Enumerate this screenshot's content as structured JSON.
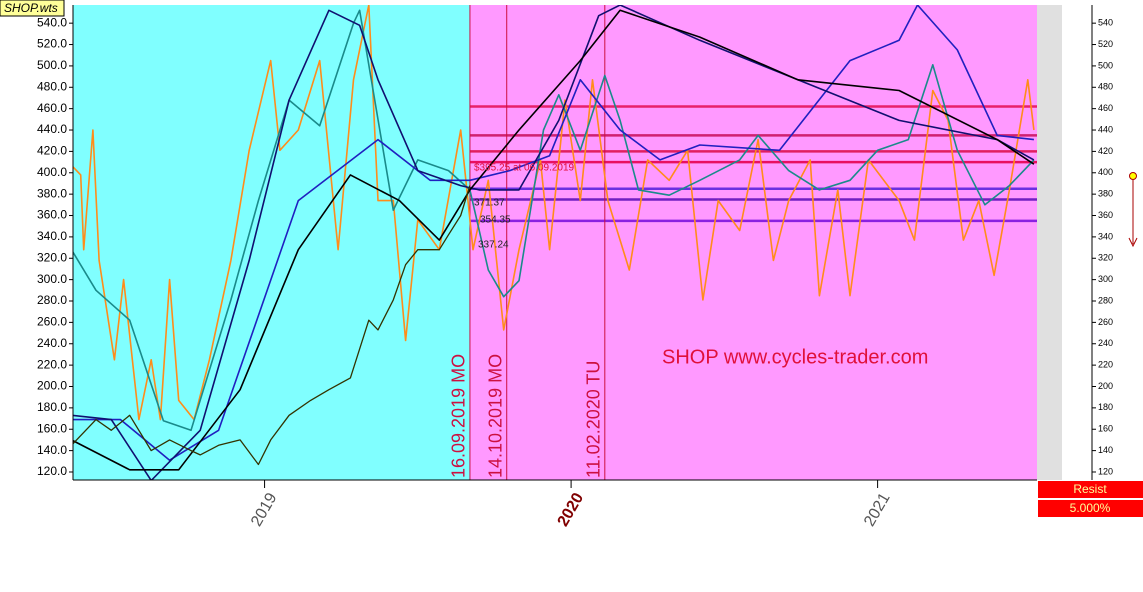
{
  "chart_data": {
    "type": "line",
    "header": "SHOP.wts",
    "watermark": "SHOP www.cycles-trader.com",
    "panel_title": "Resist",
    "panel_value": "5.000%",
    "xlim": [
      2018.375,
      2021.52
    ],
    "ylim": [
      112.5,
      557
    ],
    "xticks": [
      2019,
      2020,
      2021
    ],
    "yticks": [
      {
        "value": 120,
        "label": "120.0"
      },
      {
        "value": 140,
        "label": "140.0"
      },
      {
        "value": 160,
        "label": "160.0"
      },
      {
        "value": 180,
        "label": "180.0"
      },
      {
        "value": 200,
        "label": "200.0"
      },
      {
        "value": 220,
        "label": "220.0"
      },
      {
        "value": 240,
        "label": "240.0"
      },
      {
        "value": 260,
        "label": "260.0"
      },
      {
        "value": 280,
        "label": "280.0"
      },
      {
        "value": 300,
        "label": "300.0"
      },
      {
        "value": 320,
        "label": "320.0"
      },
      {
        "value": 340,
        "label": "340.0"
      },
      {
        "value": 360,
        "label": "360.0"
      },
      {
        "value": 380,
        "label": "380.0"
      },
      {
        "value": 400,
        "label": "400.0"
      },
      {
        "value": 420,
        "label": "420.0"
      },
      {
        "value": 440,
        "label": "440.0"
      },
      {
        "value": 460,
        "label": "460.0"
      },
      {
        "value": 480,
        "label": "480.0"
      },
      {
        "value": 500,
        "label": "500.0"
      },
      {
        "value": 520,
        "label": "520.0"
      },
      {
        "value": 540,
        "label": "540.0"
      }
    ],
    "y2lim": [
      112.5,
      557
    ],
    "y2ticks": [
      120,
      140,
      160,
      180,
      200,
      220,
      240,
      260,
      280,
      300,
      320,
      340,
      360,
      380,
      400,
      420,
      440,
      460,
      480,
      500,
      520,
      540
    ],
    "background_colors": [
      "#80ffff",
      "#ff99ff"
    ],
    "events": [
      {
        "x": 2019.67,
        "label": "16.09.2019 MO"
      },
      {
        "x": 2019.79,
        "label": "14.10.2019 MO"
      },
      {
        "x": 2020.11,
        "label": "11.02.2020 TU"
      }
    ],
    "event_color": "#cc1040",
    "levels": [
      {
        "value": 462,
        "color": "#e8206a"
      },
      {
        "value": 435,
        "color": "#d02070"
      },
      {
        "value": 420,
        "color": "#e02060"
      },
      {
        "value": 410,
        "color": "#e81060"
      },
      {
        "value": 385,
        "color": "#6a30e0"
      },
      {
        "value": 375,
        "color": "#7020c0"
      },
      {
        "value": 355,
        "color": "#8a20e0"
      }
    ],
    "annotations": [
      "$395.25 at 06.09.2019",
      "371.37",
      "354.35",
      "337.24"
    ],
    "series": [
      {
        "color": "#ff8c1a",
        "width": 1.6,
        "x": [
          2018.37,
          2018.4,
          2018.41,
          2018.44,
          2018.46,
          2018.51,
          2018.54,
          2018.59,
          2018.63,
          2018.66,
          2018.69,
          2018.72,
          2018.77,
          2018.82,
          2018.89,
          2018.95,
          2019.02,
          2019.05,
          2019.11,
          2019.18,
          2019.24,
          2019.29,
          2019.34,
          2019.37,
          2019.42,
          2019.46,
          2019.5,
          2019.57,
          2019.64,
          2019.68,
          2019.73,
          2019.78,
          2019.83,
          2019.9,
          2019.93,
          2019.98,
          2020.03,
          2020.07,
          2020.12,
          2020.19,
          2020.25,
          2020.32,
          2020.38,
          2020.43,
          2020.48,
          2020.55,
          2020.61,
          2020.66,
          2020.71,
          2020.78,
          2020.81,
          2020.87,
          2020.91,
          2020.97,
          2021.07,
          2021.12,
          2021.18,
          2021.23,
          2021.28,
          2021.33,
          2021.38,
          2021.43,
          2021.49,
          2021.51
        ],
        "values": [
          407,
          398,
          328,
          440,
          318,
          225,
          300,
          169,
          225,
          169,
          300,
          187,
          169,
          225,
          318,
          421,
          505,
          421,
          440,
          505,
          328,
          487,
          557,
          374,
          374,
          243,
          356,
          328,
          440,
          328,
          393,
          253,
          328,
          412,
          328,
          468,
          374,
          487,
          374,
          309,
          412,
          393,
          421,
          281,
          374,
          346,
          431,
          318,
          374,
          412,
          285,
          384,
          285,
          412,
          374,
          337,
          477,
          449,
          337,
          374,
          304,
          384,
          487,
          440
        ]
      },
      {
        "color": "#1a8a8a",
        "width": 1.6,
        "x": [
          2018.37,
          2018.45,
          2018.56,
          2018.67,
          2018.76,
          2018.89,
          2018.98,
          2019.08,
          2019.18,
          2019.29,
          2019.31,
          2019.42,
          2019.5,
          2019.6,
          2019.67,
          2019.73,
          2019.78,
          2019.83,
          2019.91,
          2019.96,
          2020.03,
          2020.11,
          2020.16,
          2020.22,
          2020.32,
          2020.42,
          2020.55,
          2020.61,
          2020.71,
          2020.81,
          2020.91,
          2021.0,
          2021.1,
          2021.18,
          2021.26,
          2021.35,
          2021.43,
          2021.51
        ],
        "values": [
          328,
          290,
          262,
          168,
          159,
          281,
          374,
          468,
          444,
          540,
          552,
          365,
          412,
          402,
          384,
          309,
          284,
          299,
          440,
          473,
          421,
          491,
          449,
          384,
          379,
          393,
          412,
          435,
          402,
          384,
          393,
          421,
          431,
          501,
          421,
          370,
          388,
          412
        ]
      },
      {
        "color": "#2020c0",
        "width": 1.6,
        "x": [
          2018.37,
          2018.53,
          2018.69,
          2018.85,
          2019.11,
          2019.37,
          2019.54,
          2019.67,
          2019.8,
          2019.93,
          2020.03,
          2020.16,
          2020.29,
          2020.42,
          2020.68,
          2020.91,
          2021.07,
          2021.13,
          2021.26,
          2021.39,
          2021.51
        ],
        "values": [
          169,
          169,
          131,
          159,
          374,
          431,
          393,
          393,
          402,
          416,
          487,
          440,
          412,
          426,
          421,
          505,
          524,
          557,
          515,
          435,
          431
        ]
      },
      {
        "color": "#101070",
        "width": 1.6,
        "x": [
          2018.37,
          2018.5,
          2018.63,
          2018.79,
          2018.95,
          2019.08,
          2019.21,
          2019.31,
          2019.37,
          2019.5,
          2019.64,
          2019.7,
          2019.83,
          2019.96,
          2020.09,
          2020.16,
          2020.42,
          2020.74,
          2021.07,
          2021.39,
          2021.51
        ],
        "values": [
          173,
          169,
          112,
          159,
          318,
          468,
          552,
          538,
          487,
          402,
          388,
          384,
          384,
          449,
          547,
          557,
          524,
          487,
          449,
          431,
          412
        ]
      },
      {
        "color": "#000000",
        "width": 1.6,
        "x": [
          2018.37,
          2018.56,
          2018.72,
          2018.92,
          2019.11,
          2019.28,
          2019.44,
          2019.57,
          2019.67,
          2019.83,
          2020.03,
          2020.16,
          2020.42,
          2020.74,
          2021.07,
          2021.39,
          2021.51
        ],
        "values": [
          150,
          122,
          122,
          197,
          328,
          398,
          374,
          337,
          384,
          440,
          505,
          552,
          527,
          487,
          477,
          431,
          408
        ]
      },
      {
        "color": "#333300",
        "width": 1.3,
        "x": [
          2018.37,
          2018.45,
          2018.5,
          2018.56,
          2018.63,
          2018.69,
          2018.76,
          2018.79,
          2018.85,
          2018.92,
          2018.98,
          2019.02,
          2019.08,
          2019.15,
          2019.21,
          2019.28,
          2019.34,
          2019.37,
          2019.42,
          2019.46,
          2019.5,
          2019.57,
          2019.6,
          2019.64,
          2019.67
        ],
        "values": [
          145,
          169,
          159,
          173,
          140,
          150,
          140,
          136,
          145,
          150,
          127,
          150,
          173,
          187,
          197,
          208,
          262,
          253,
          281,
          314,
          328,
          328,
          342,
          360,
          388
        ]
      }
    ]
  }
}
